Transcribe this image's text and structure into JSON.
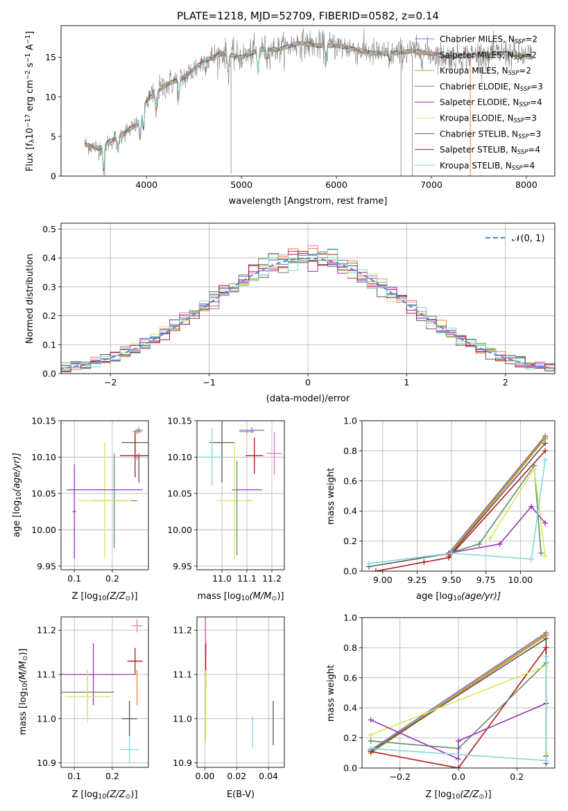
{
  "figure_title": "PLATE=1218, MJD=52709, FIBERID=0582, z=0.14",
  "colors": {
    "Chabrier MILES": "#5b7fcf",
    "Salpeter MILES": "#f07f2a",
    "Kroupa MILES": "#b8a12a",
    "Chabrier ELODIE": "#5e8c6a",
    "Salpeter ELODIE": "#9b30b8",
    "Kroupa ELODIE": "#d4e85a",
    "Chabrier STELIB": "#555555",
    "Salpeter STELIB": "#b01515",
    "Kroupa STELIB": "#7fd8dc",
    "data": "#808080",
    "pink": "#e878b8"
  },
  "chart_data": [
    {
      "id": "spectrum",
      "type": "line",
      "title": "PLATE=1218, MJD=52709, FIBERID=0582, z=0.14",
      "xlabel": "wavelength [Angstrom, rest frame]",
      "ylabel": "Flux [f_λ 10^-17 erg cm^-2 s^-1 A^-1]",
      "ylabel_parts": {
        "pre": "Flux [f",
        "sub": "λ",
        "mid": "10",
        "sup1": "−17",
        "mid2": " erg cm",
        "sup2": "−2",
        "mid3": " s",
        "sup3": "−1",
        "mid4": " A",
        "sup4": "−1",
        "post": "]"
      },
      "xlim": [
        3100,
        8300
      ],
      "ylim": [
        0,
        19
      ],
      "xticks": [
        4000,
        5000,
        6000,
        7000,
        8000
      ],
      "yticks": [
        0,
        5,
        10,
        15
      ],
      "continuum": {
        "x": [
          3350,
          3500,
          3700,
          3900,
          4000,
          4200,
          4400,
          4600,
          4800,
          5000,
          5200,
          5400,
          5600,
          5800,
          6000,
          6200,
          6400,
          6600,
          6800,
          7000,
          7200,
          7400,
          7600,
          7800,
          8060
        ],
        "y": [
          4.0,
          3.5,
          5.0,
          6.5,
          9.5,
          11.5,
          12.5,
          14.5,
          15.5,
          15.0,
          16.0,
          16.0,
          16.8,
          16.5,
          16.5,
          16.0,
          15.5,
          15.5,
          15.8,
          15.5,
          15.0,
          15.2,
          15.5,
          15.5,
          15.0
        ]
      },
      "absorption_lines": [
        {
          "x": 3550,
          "depth": 3.5
        },
        {
          "x": 3700,
          "depth": 2.0
        },
        {
          "x": 3933,
          "depth": 3.0
        },
        {
          "x": 3969,
          "depth": 2.8
        },
        {
          "x": 4102,
          "depth": 2.5
        },
        {
          "x": 4340,
          "depth": 2.5
        },
        {
          "x": 4861,
          "depth": 2.2
        },
        {
          "x": 5175,
          "depth": 3.0
        },
        {
          "x": 5270,
          "depth": 1.2
        },
        {
          "x": 5890,
          "depth": 2.0
        },
        {
          "x": 6563,
          "depth": 1.0
        },
        {
          "x": 7600,
          "depth": 1.2
        }
      ],
      "spikes": [
        {
          "x": 3560,
          "to": 0
        },
        {
          "x": 4890,
          "to": 0.3
        },
        {
          "x": 6680,
          "to": 0
        },
        {
          "x": 6800,
          "to": 0
        },
        {
          "x": 7410,
          "to": 0
        }
      ],
      "legend": [
        {
          "model": "Chabrier MILES",
          "label": "Chabrier MILES, N",
          "sub": "SSP",
          "n": "=2"
        },
        {
          "model": "Salpeter MILES",
          "label": "Salpeter MILES, N",
          "sub": "SSP",
          "n": "=2"
        },
        {
          "model": "Kroupa MILES",
          "label": "Kroupa MILES, N",
          "sub": "SSP",
          "n": "=2"
        },
        {
          "model": "Chabrier ELODIE",
          "label": "Chabrier ELODIE, N",
          "sub": "SSP",
          "n": "=3"
        },
        {
          "model": "Salpeter ELODIE",
          "label": "Salpeter ELODIE, N",
          "sub": "SSP",
          "n": "=4"
        },
        {
          "model": "Kroupa ELODIE",
          "label": "Kroupa ELODIE, N",
          "sub": "SSP",
          "n": "=3"
        },
        {
          "model": "Chabrier STELIB",
          "label": "Chabrier STELIB, N",
          "sub": "SSP",
          "n": "=3"
        },
        {
          "model": "Salpeter STELIB",
          "label": "Salpeter STELIB, N",
          "sub": "SSP",
          "n": "=4"
        },
        {
          "model": "Kroupa STELIB",
          "label": "Kroupa STELIB, N",
          "sub": "SSP",
          "n": "=4"
        }
      ],
      "legend_position": "upper-right",
      "grid": false
    },
    {
      "id": "residuals",
      "type": "histogram",
      "xlabel": "(data-model)/error",
      "ylabel": "Normed distribution",
      "xlim": [
        -2.5,
        2.5
      ],
      "ylim": [
        0,
        0.52
      ],
      "xticks": [
        -2,
        -1,
        0,
        1,
        2
      ],
      "yticks": [
        0.0,
        0.1,
        0.2,
        0.3,
        0.4,
        0.5
      ],
      "bin_width": 0.1,
      "gaussian_label": "𝒩(0, 1)",
      "legend_position": "upper-right",
      "grid": true
    },
    {
      "id": "age_vs_Z",
      "type": "errorbar",
      "xlabel_main": "Z [log",
      "xlabel_sub": "10",
      "xlabel_tail": "(Z/Z",
      "xlabel_sun": "⊙",
      "xlabel_end": ")]",
      "ylabel_main": "age  [log",
      "ylabel_sub": "10",
      "ylabel_tail": "(age/yr)]",
      "xlim": [
        0.065,
        0.295
      ],
      "ylim": [
        9.945,
        10.15
      ],
      "xticks": [
        0.1,
        0.2
      ],
      "yticks": [
        9.95,
        10.0,
        10.05,
        10.1,
        10.15
      ],
      "grid": true,
      "points": [
        {
          "model": "Chabrier MILES",
          "x": 0.27,
          "xerr": 0.01,
          "y": 10.137,
          "yerr": 0.004
        },
        {
          "model": "Salpeter MILES",
          "x": 0.265,
          "xerr": 0.012,
          "y": 10.135,
          "yerr": 0.004
        },
        {
          "model": "pink",
          "x": 0.265,
          "xerr": 0.01,
          "y": 10.1,
          "yerr": 0.004
        },
        {
          "model": "Chabrier STELIB",
          "x": 0.26,
          "xerr": 0.035,
          "y": 10.12,
          "yerr": 0.016
        },
        {
          "model": "Salpeter STELIB",
          "x": 0.26,
          "xerr": 0.04,
          "y": 10.102,
          "yerr": 0.03
        },
        {
          "model": "Chabrier ELODIE",
          "x": 0.205,
          "xerr": 0.06,
          "y": 10.04,
          "yerr": 0.065
        },
        {
          "model": "Kroupa ELODIE",
          "x": 0.18,
          "xerr": 0.07,
          "y": 10.04,
          "yerr": 0.08
        },
        {
          "model": "Salpeter ELODIE",
          "x": 0.1,
          "xerr": 0.005,
          "y": 10.025,
          "yerr": 0.065
        },
        {
          "model": "Salpeter ELODIE",
          "x": 0.18,
          "xerr": 0.1,
          "y": 10.055,
          "yerr": 0.0
        },
        {
          "model": "Chabrier STELIB",
          "x": 0.27,
          "xerr": 0.0,
          "y": 10.085,
          "yerr": 0.02
        }
      ]
    },
    {
      "id": "age_vs_mass",
      "type": "errorbar",
      "xlabel_main": "mass [log",
      "xlabel_sub": "10",
      "xlabel_tail": "(M/M",
      "xlabel_sun": "⊙",
      "xlabel_end": ")]",
      "xlim": [
        10.9,
        11.25
      ],
      "ylim": [
        9.945,
        10.15
      ],
      "xticks": [
        11.0,
        11.1,
        11.2
      ],
      "yticks": [
        9.95,
        10.0,
        10.05,
        10.1,
        10.15
      ],
      "grid": true,
      "points": [
        {
          "model": "Chabrier MILES",
          "x": 11.12,
          "xerr": 0.05,
          "y": 10.137,
          "yerr": 0.004
        },
        {
          "model": "Salpeter MILES",
          "x": 11.1,
          "xerr": 0.03,
          "y": 10.135,
          "yerr": 0.003
        },
        {
          "model": "pink",
          "x": 11.21,
          "xerr": 0.03,
          "y": 10.105,
          "yerr": 0.03
        },
        {
          "model": "Chabrier STELIB",
          "x": 11.0,
          "xerr": 0.05,
          "y": 10.12,
          "yerr": 0.055
        },
        {
          "model": "Kroupa STELIB",
          "x": 10.96,
          "xerr": 0.05,
          "y": 10.1,
          "yerr": 0.04
        },
        {
          "model": "Salpeter STELIB",
          "x": 11.13,
          "xerr": 0.035,
          "y": 10.102,
          "yerr": 0.025
        },
        {
          "model": "Salpeter ELODIE",
          "x": 11.1,
          "xerr": 0.06,
          "y": 10.055,
          "yerr": 0.0
        },
        {
          "model": "Kroupa ELODIE",
          "x": 11.05,
          "xerr": 0.07,
          "y": 10.04,
          "yerr": 0.08
        },
        {
          "model": "Chabrier ELODIE",
          "x": 11.06,
          "xerr": 0.0,
          "y": 10.03,
          "yerr": 0.065
        }
      ]
    },
    {
      "id": "massweight_vs_age",
      "type": "line",
      "xlabel_main": "age  [log",
      "xlabel_sub": "10",
      "xlabel_tail": "(age/yr)]",
      "ylabel": "mass weight",
      "xlim": [
        8.85,
        10.25
      ],
      "ylim": [
        0,
        1.0
      ],
      "xticks": [
        9.0,
        9.25,
        9.5,
        9.75,
        10.0
      ],
      "xtick_labels": [
        "9.00",
        "9.25",
        "9.50",
        "9.75",
        "10.00"
      ],
      "yticks": [
        0.0,
        0.2,
        0.4,
        0.6,
        0.8,
        1.0
      ],
      "grid": true,
      "series": [
        {
          "model": "Chabrier MILES",
          "x": [
            9.48,
            10.18
          ],
          "y": [
            0.12,
            0.9
          ]
        },
        {
          "model": "Salpeter MILES",
          "x": [
            9.48,
            10.18
          ],
          "y": [
            0.11,
            0.89
          ]
        },
        {
          "model": "Kroupa MILES",
          "x": [
            9.48,
            10.18
          ],
          "y": [
            0.1,
            0.88
          ]
        },
        {
          "model": "Chabrier STELIB",
          "x": [
            8.9,
            9.5,
            10.18
          ],
          "y": [
            0.03,
            0.12,
            0.85
          ]
        },
        {
          "model": "Salpeter STELIB",
          "x": [
            8.95,
            9.3,
            9.48,
            10.18
          ],
          "y": [
            0.0,
            0.06,
            0.09,
            0.8
          ]
        },
        {
          "model": "Chabrier ELODIE",
          "x": [
            9.48,
            9.7,
            10.1,
            10.15
          ],
          "y": [
            0.12,
            0.18,
            0.7,
            0.12
          ]
        },
        {
          "model": "Kroupa ELODIE",
          "x": [
            9.78,
            10.1,
            10.18
          ],
          "y": [
            0.22,
            0.68,
            0.1
          ]
        },
        {
          "model": "Salpeter ELODIE",
          "x": [
            9.48,
            9.85,
            10.08,
            10.18
          ],
          "y": [
            0.12,
            0.18,
            0.43,
            0.32
          ]
        },
        {
          "model": "Kroupa STELIB",
          "x": [
            8.9,
            9.5,
            10.08,
            10.18
          ],
          "y": [
            0.05,
            0.12,
            0.08,
            0.74
          ]
        }
      ]
    },
    {
      "id": "mass_vs_Z",
      "type": "errorbar",
      "xlabel_main": "Z [log",
      "xlabel_sub": "10",
      "xlabel_tail": "(Z/Z",
      "xlabel_sun": "⊙",
      "xlabel_end": ")]",
      "ylabel_main": "mass [log",
      "ylabel_sub": "10",
      "ylabel_tail": "(M/M",
      "ylabel_sun": "⊙",
      "ylabel_end": ")]",
      "xlim": [
        0.065,
        0.295
      ],
      "ylim": [
        10.89,
        11.23
      ],
      "xticks": [
        0.1,
        0.2
      ],
      "yticks": [
        10.9,
        11.0,
        11.1,
        11.2
      ],
      "grid": true,
      "points": [
        {
          "model": "pink",
          "x": 0.265,
          "xerr": 0.015,
          "y": 11.21,
          "yerr": 0.015
        },
        {
          "model": "Salpeter STELIB",
          "x": 0.26,
          "xerr": 0.02,
          "y": 11.13,
          "yerr": 0.03
        },
        {
          "model": "Salpeter ELODIE",
          "x": 0.15,
          "xerr": 0.11,
          "y": 11.1,
          "yerr": 0.07
        },
        {
          "model": "Salpeter MILES",
          "x": 0.265,
          "xerr": 0.0,
          "y": 11.07,
          "yerr": 0.04
        },
        {
          "model": "Chabrier ELODIE",
          "x": 0.135,
          "xerr": 0.07,
          "y": 11.06,
          "yerr": 0.05
        },
        {
          "model": "Kroupa ELODIE",
          "x": 0.135,
          "xerr": 0.06,
          "y": 11.05,
          "yerr": 0.06
        },
        {
          "model": "Chabrier STELIB",
          "x": 0.245,
          "xerr": 0.02,
          "y": 11.0,
          "yerr": 0.04
        },
        {
          "model": "Kroupa STELIB",
          "x": 0.245,
          "xerr": 0.025,
          "y": 10.93,
          "yerr": 0.03
        }
      ]
    },
    {
      "id": "mass_vs_EBV",
      "type": "errorbar",
      "xlabel": "E(B-V)",
      "xlim": [
        -0.005,
        0.05
      ],
      "ylim": [
        10.89,
        11.23
      ],
      "xticks": [
        0.0,
        0.02,
        0.04
      ],
      "xtick_labels": [
        "0.00",
        "0.02",
        "0.04"
      ],
      "yticks": [
        10.9,
        11.0,
        11.1,
        11.2
      ],
      "grid": true,
      "points": [
        {
          "model": "pink",
          "x": 0.0005,
          "xerr": 0.0,
          "y": 11.18,
          "yerr": 0.05
        },
        {
          "model": "Salpeter STELIB",
          "x": 0.0005,
          "xerr": 0.0,
          "y": 11.12,
          "yerr": 0.05
        },
        {
          "model": "Kroupa ELODIE",
          "x": 0.0005,
          "xerr": 0.0,
          "y": 11.03,
          "yerr": 0.08
        },
        {
          "model": "Kroupa STELIB",
          "x": 0.03,
          "xerr": 0.0,
          "y": 10.97,
          "yerr": 0.035
        },
        {
          "model": "Chabrier STELIB",
          "x": 0.043,
          "xerr": 0.0,
          "y": 10.99,
          "yerr": 0.05
        }
      ]
    },
    {
      "id": "massweight_vs_Z",
      "type": "line",
      "xlabel_main": "Z [log",
      "xlabel_sub": "10",
      "xlabel_tail": "(Z/Z",
      "xlabel_sun": "⊙",
      "xlabel_end": ")]",
      "ylabel": "mass weight",
      "xlim": [
        -0.33,
        0.33
      ],
      "ylim": [
        0,
        1.0
      ],
      "xticks": [
        -0.2,
        0.0,
        0.2
      ],
      "xtick_labels": [
        "−0.2",
        "0.0",
        "0.2"
      ],
      "yticks": [
        0.0,
        0.2,
        0.4,
        0.6,
        0.8,
        1.0
      ],
      "grid": true,
      "series": [
        {
          "model": "Chabrier MILES",
          "x": [
            -0.3,
            0.3
          ],
          "y": [
            0.12,
            0.9
          ]
        },
        {
          "model": "Salpeter MILES",
          "x": [
            -0.3,
            0.3
          ],
          "y": [
            0.11,
            0.89
          ]
        },
        {
          "model": "Kroupa MILES",
          "x": [
            -0.3,
            0.3
          ],
          "y": [
            0.1,
            0.88
          ]
        },
        {
          "model": "Chabrier STELIB",
          "x": [
            -0.3,
            0.3,
            0.3
          ],
          "y": [
            0.11,
            0.86,
            0.03
          ]
        },
        {
          "model": "Salpeter STELIB",
          "x": [
            -0.3,
            0.0,
            0.3,
            0.3
          ],
          "y": [
            0.11,
            0.0,
            0.8,
            0.08
          ]
        },
        {
          "model": "Chabrier ELODIE",
          "x": [
            -0.3,
            0.0,
            0.3
          ],
          "y": [
            0.18,
            0.13,
            0.7
          ]
        },
        {
          "model": "Kroupa ELODIE",
          "x": [
            -0.3,
            0.3,
            0.3
          ],
          "y": [
            0.22,
            0.68,
            0.1
          ]
        },
        {
          "model": "Salpeter ELODIE",
          "x": [
            -0.3,
            0.0,
            0.0,
            0.3
          ],
          "y": [
            0.32,
            0.06,
            0.18,
            0.43
          ]
        },
        {
          "model": "Kroupa STELIB",
          "x": [
            -0.3,
            0.3,
            0.3
          ],
          "y": [
            0.13,
            0.05,
            0.74
          ]
        }
      ]
    }
  ]
}
